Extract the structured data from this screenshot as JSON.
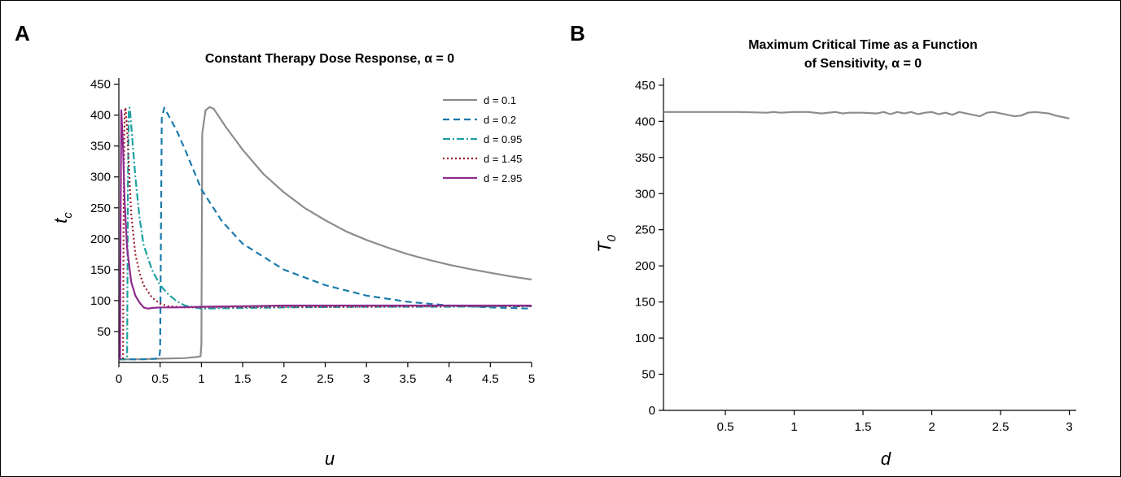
{
  "chart_data": [
    {
      "type": "line",
      "panel_label": "A",
      "title": "Constant Therapy Dose Response, α = 0",
      "xlabel": "u",
      "ylabel_base": "t",
      "ylabel_sub": "c",
      "xlim": [
        0,
        5
      ],
      "ylim": [
        0,
        460
      ],
      "xticks": [
        "0",
        "0.5",
        "1",
        "1.5",
        "2",
        "2.5",
        "3",
        "3.5",
        "4",
        "4.5",
        "5"
      ],
      "xtick_values": [
        0,
        0.5,
        1,
        1.5,
        2,
        2.5,
        3,
        3.5,
        4,
        4.5,
        5
      ],
      "yticks": [
        "50",
        "100",
        "150",
        "200",
        "250",
        "300",
        "350",
        "400",
        "450"
      ],
      "ytick_values": [
        50,
        100,
        150,
        200,
        250,
        300,
        350,
        400,
        450
      ],
      "legend_position": "top-right",
      "series": [
        {
          "name": "d = 0.1",
          "color": "#8c8c8c",
          "dash": "solid",
          "x": [
            0,
            0.2,
            0.5,
            0.8,
            0.95,
            0.99,
            1.0,
            1.01,
            1.05,
            1.1,
            1.15,
            1.2,
            1.3,
            1.4,
            1.5,
            1.75,
            2,
            2.25,
            2.5,
            2.75,
            3,
            3.25,
            3.5,
            3.75,
            4,
            4.25,
            4.5,
            4.75,
            5
          ],
          "y": [
            5,
            5,
            6,
            7,
            9,
            10,
            30,
            370,
            408,
            413,
            410,
            400,
            380,
            362,
            344,
            305,
            275,
            250,
            230,
            212,
            198,
            186,
            175,
            166,
            158,
            151,
            145,
            139,
            134
          ]
        },
        {
          "name": "d = 0.2",
          "color": "#1a7bab",
          "dash": "8,5",
          "x": [
            0,
            0.3,
            0.45,
            0.49,
            0.5,
            0.52,
            0.55,
            0.6,
            0.7,
            0.8,
            1.0,
            1.25,
            1.5,
            2,
            2.5,
            3,
            3.5,
            4,
            4.5,
            5
          ],
          "y": [
            5,
            5,
            6,
            8,
            20,
            395,
            412,
            400,
            375,
            345,
            280,
            228,
            192,
            150,
            125,
            108,
            98,
            92,
            89,
            87
          ]
        },
        {
          "name": "d = 0.95",
          "color": "#1ea0a0",
          "dash": "9,3,2,3",
          "x": [
            0,
            0.08,
            0.1,
            0.11,
            0.12,
            0.13,
            0.14,
            0.17,
            0.2,
            0.25,
            0.3,
            0.4,
            0.5,
            0.6,
            0.7,
            0.8,
            1.0,
            1.5,
            2,
            3,
            4,
            5
          ],
          "y": [
            5,
            5,
            6,
            300,
            405,
            412,
            400,
            350,
            300,
            235,
            190,
            150,
            125,
            110,
            99,
            92,
            87,
            88,
            89,
            90,
            90,
            91
          ]
        },
        {
          "name": "d = 1.45",
          "color": "#9b1b2a",
          "dash": "2,3",
          "x": [
            0,
            0.04,
            0.05,
            0.06,
            0.07,
            0.08,
            0.1,
            0.12,
            0.15,
            0.2,
            0.25,
            0.3,
            0.4,
            0.5,
            0.6,
            0.8,
            1.0,
            2,
            3,
            4,
            5
          ],
          "y": [
            5,
            5,
            6,
            300,
            405,
            412,
            380,
            320,
            240,
            175,
            145,
            125,
            105,
            95,
            91,
            89,
            89,
            90,
            90,
            91,
            91
          ]
        },
        {
          "name": "d = 2.95",
          "color": "#8e2a8e",
          "dash": "solid",
          "x": [
            0,
            0.015,
            0.02,
            0.03,
            0.05,
            0.07,
            0.1,
            0.15,
            0.2,
            0.25,
            0.3,
            0.35,
            0.4,
            0.5,
            0.7,
            1.0,
            1.5,
            2,
            2.5,
            3,
            4,
            5
          ],
          "y": [
            5,
            5,
            200,
            408,
            350,
            260,
            185,
            130,
            108,
            97,
            89,
            87,
            88,
            89,
            89,
            90,
            91,
            92,
            92,
            92,
            92,
            92
          ]
        }
      ]
    },
    {
      "type": "line",
      "panel_label": "B",
      "title_line1": "Maximum Critical Time as a Function",
      "title_line2": "of Sensitivity, α = 0",
      "xlabel": "d",
      "ylabel_base": "T",
      "ylabel_sub": "0",
      "xlim": [
        0.05,
        3.05
      ],
      "ylim": [
        0,
        460
      ],
      "xticks": [
        "0.5",
        "1",
        "1.5",
        "2",
        "2.5",
        "3"
      ],
      "xtick_values": [
        0.5,
        1,
        1.5,
        2,
        2.5,
        3
      ],
      "yticks": [
        "0",
        "50",
        "100",
        "150",
        "200",
        "250",
        "300",
        "350",
        "400",
        "450"
      ],
      "ytick_values": [
        0,
        50,
        100,
        150,
        200,
        250,
        300,
        350,
        400,
        450
      ],
      "series": [
        {
          "name": "",
          "color": "#8c8c8c",
          "x": [
            0.05,
            0.3,
            0.6,
            0.8,
            0.85,
            0.9,
            1.0,
            1.1,
            1.2,
            1.3,
            1.35,
            1.4,
            1.5,
            1.6,
            1.65,
            1.7,
            1.75,
            1.8,
            1.85,
            1.9,
            1.95,
            2.0,
            2.05,
            2.1,
            2.15,
            2.2,
            2.25,
            2.3,
            2.35,
            2.4,
            2.45,
            2.5,
            2.55,
            2.6,
            2.65,
            2.7,
            2.75,
            2.8,
            2.85,
            2.9,
            2.95,
            3.0
          ],
          "y": [
            413,
            413,
            413,
            412,
            413,
            412,
            413,
            413,
            411,
            413,
            411,
            412,
            412,
            411,
            413,
            410,
            413,
            411,
            413,
            410,
            412,
            413,
            410,
            412,
            409,
            413,
            411,
            409,
            407,
            412,
            413,
            411,
            409,
            407,
            408,
            412,
            413,
            412,
            411,
            408,
            406,
            404
          ]
        }
      ]
    }
  ]
}
